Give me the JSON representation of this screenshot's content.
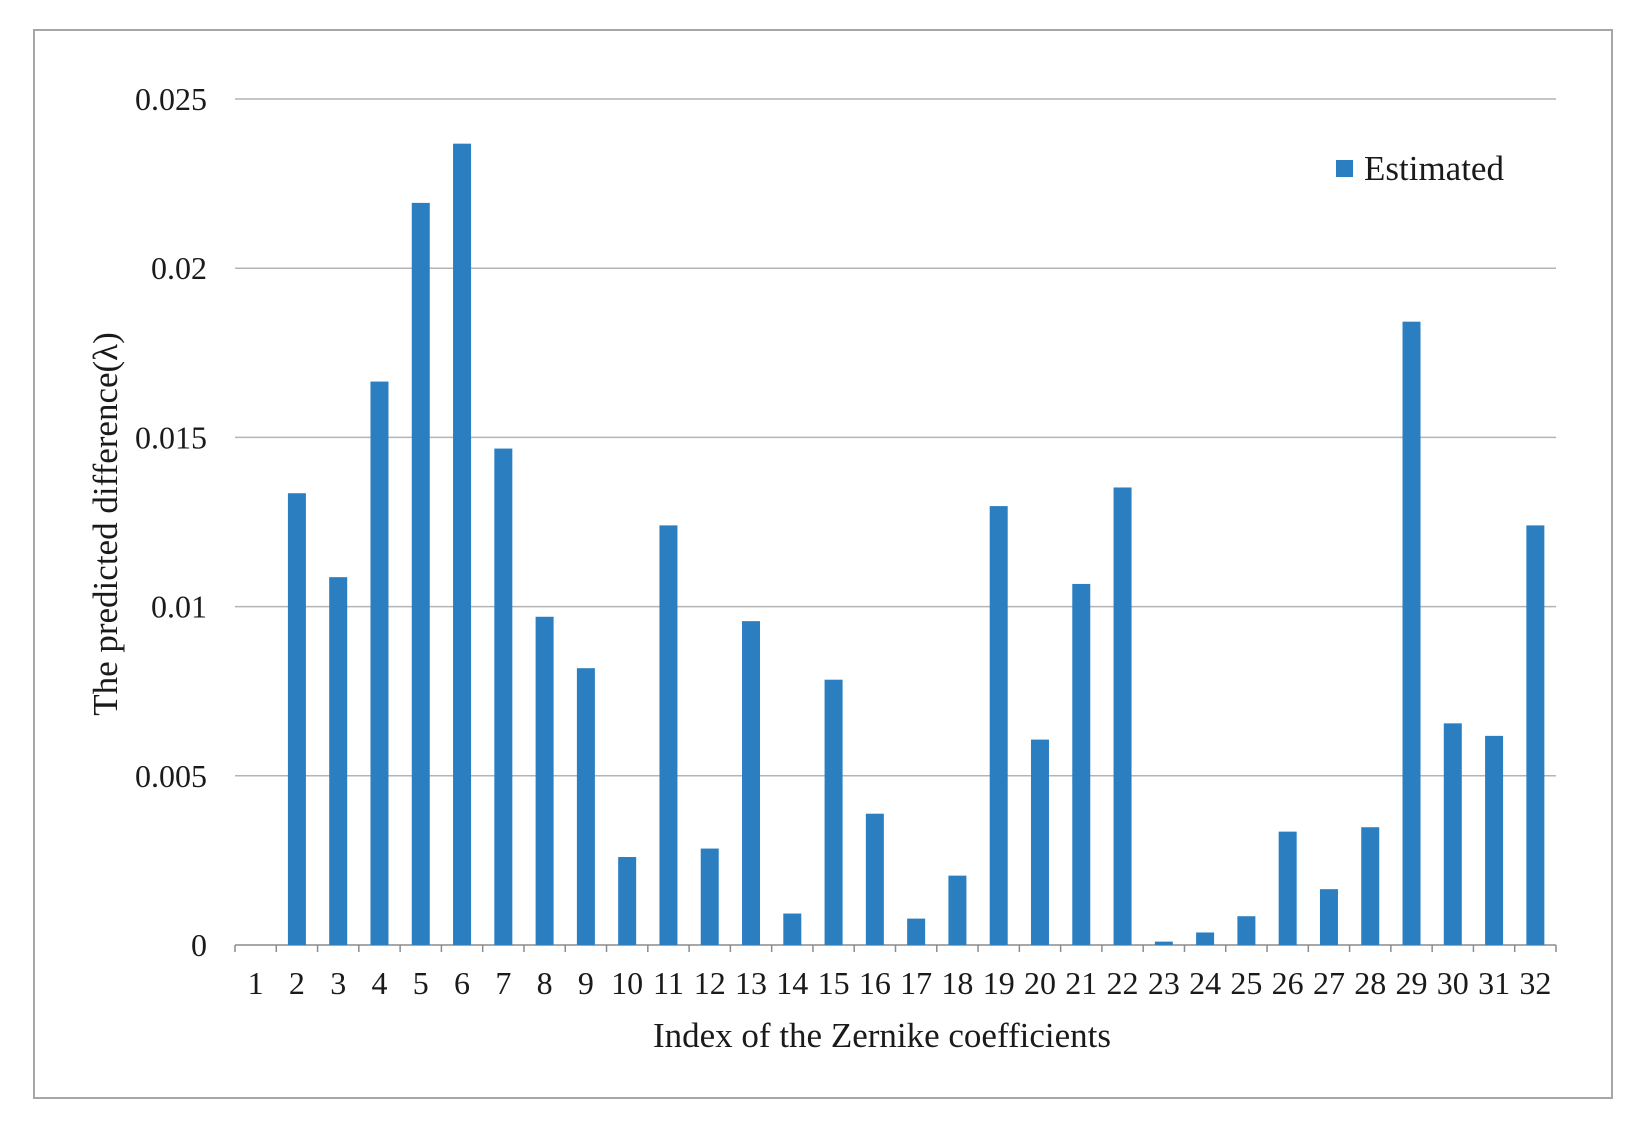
{
  "chart_data": {
    "type": "bar",
    "title": "",
    "xlabel": "Index of the Zernike coefficients",
    "ylabel": "The predicted difference(λ)",
    "ylim": [
      0,
      0.025
    ],
    "yticks": [
      "0",
      "0.005",
      "0.01",
      "0.015",
      "0.02",
      "0.025"
    ],
    "grid": "horizontal",
    "legend_position": "top-right",
    "categories": [
      "1",
      "2",
      "3",
      "4",
      "5",
      "6",
      "7",
      "8",
      "9",
      "10",
      "11",
      "12",
      "13",
      "14",
      "15",
      "16",
      "17",
      "18",
      "19",
      "20",
      "21",
      "22",
      "23",
      "24",
      "25",
      "26",
      "27",
      "28",
      "29",
      "30",
      "31",
      "32"
    ],
    "series": [
      {
        "name": "Estimated",
        "color": "#2b7fc1",
        "values": [
          0,
          0.01335,
          0.01087,
          0.01665,
          0.02193,
          0.02368,
          0.01467,
          0.0097,
          0.00818,
          0.0026,
          0.0124,
          0.00285,
          0.00957,
          0.00093,
          0.00784,
          0.00388,
          0.00078,
          0.00205,
          0.01297,
          0.00607,
          0.01067,
          0.01352,
          0.0001,
          0.00037,
          0.00085,
          0.00335,
          0.00165,
          0.00348,
          0.01842,
          0.00655,
          0.00618,
          0.0124
        ]
      }
    ]
  }
}
